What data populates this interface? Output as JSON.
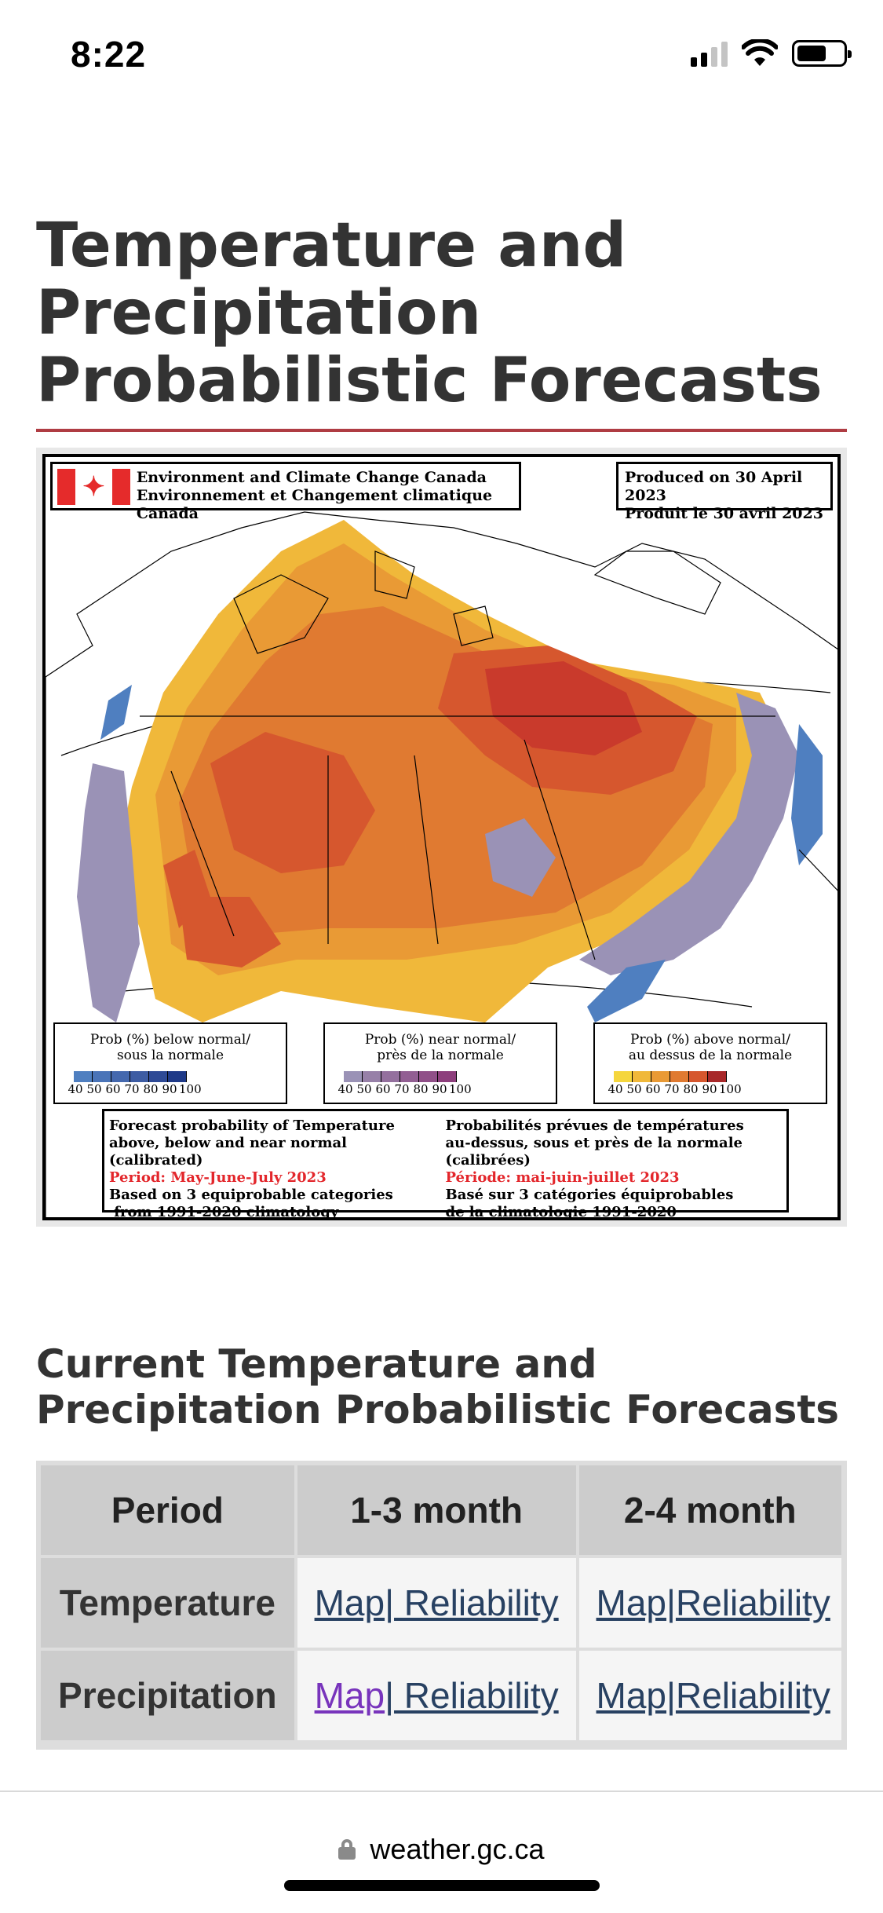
{
  "status_bar": {
    "time": "8:22"
  },
  "page": {
    "title": "Temperature and Precipitation Probabilistic Forecasts",
    "accent_color": "#af3c43"
  },
  "forecast_map": {
    "agency_en": "Environment and Climate Change Canada",
    "agency_fr": "Environnement et Changement climatique Canada",
    "produced_en": "Produced on 30 April 2023",
    "produced_fr": "Produit le 30 avril 2023",
    "legends": [
      {
        "title_line1": "Prob (%) below normal/",
        "title_line2": "sous la normale",
        "ticks": [
          "40",
          "50",
          "60",
          "70",
          "80",
          "90",
          "100"
        ],
        "colors": [
          "#4f7fc0",
          "#4a74b8",
          "#4468ae",
          "#3d5ca3",
          "#2e4a96",
          "#1f3a88"
        ]
      },
      {
        "title_line1": "Prob (%) near normal/",
        "title_line2": "près de la normale",
        "ticks": [
          "40",
          "50",
          "60",
          "70",
          "80",
          "90",
          "100"
        ],
        "colors": [
          "#9a92b6",
          "#9780a8",
          "#94709e",
          "#925f93",
          "#904f88",
          "#8d3e7c"
        ]
      },
      {
        "title_line1": "Prob (%) above normal/",
        "title_line2": "au dessus de la normale",
        "ticks": [
          "40",
          "50",
          "60",
          "70",
          "80",
          "90",
          "100"
        ],
        "colors": [
          "#f5d63d",
          "#f0b83a",
          "#e99a35",
          "#e07a31",
          "#d6572e",
          "#a8282a"
        ]
      }
    ],
    "info_en": {
      "line1": "Forecast probability of Temperature",
      "line2": "above, below and near normal (calibrated)",
      "period": "Period: May-June-July 2023",
      "line3": "Based on 3 equiprobable categories",
      "line4": " from 1991-2020 climatology"
    },
    "info_fr": {
      "line1": "Probabilités prévues de températures",
      "line2": "au-dessus, sous et près de la normale (calibrées)",
      "period": "Période: mai-juin-juillet 2023",
      "line3": "Basé sur 3 catégories équiprobables",
      "line4": "de la climatologie 1991-2020"
    }
  },
  "section": {
    "title": "Current Temperature and Precipitation Probabilistic Forecasts"
  },
  "table": {
    "headers": [
      "Period",
      "1-3 month",
      "2-4 month"
    ],
    "rows": [
      {
        "label": "Temperature",
        "c1_map": "Map",
        "c1_sep": "|",
        "c1_rel": " Reliability",
        "c2_map": "Map",
        "c2_sep": "|",
        "c2_rel": "Reliability"
      },
      {
        "label": "Precipitation",
        "c1_map": "Map",
        "c1_sep": "|",
        "c1_rel": " Reliability",
        "c2_map": "Map",
        "c2_sep": "|",
        "c2_rel": "Reliability"
      }
    ]
  },
  "browser": {
    "url": "weather.gc.ca"
  }
}
